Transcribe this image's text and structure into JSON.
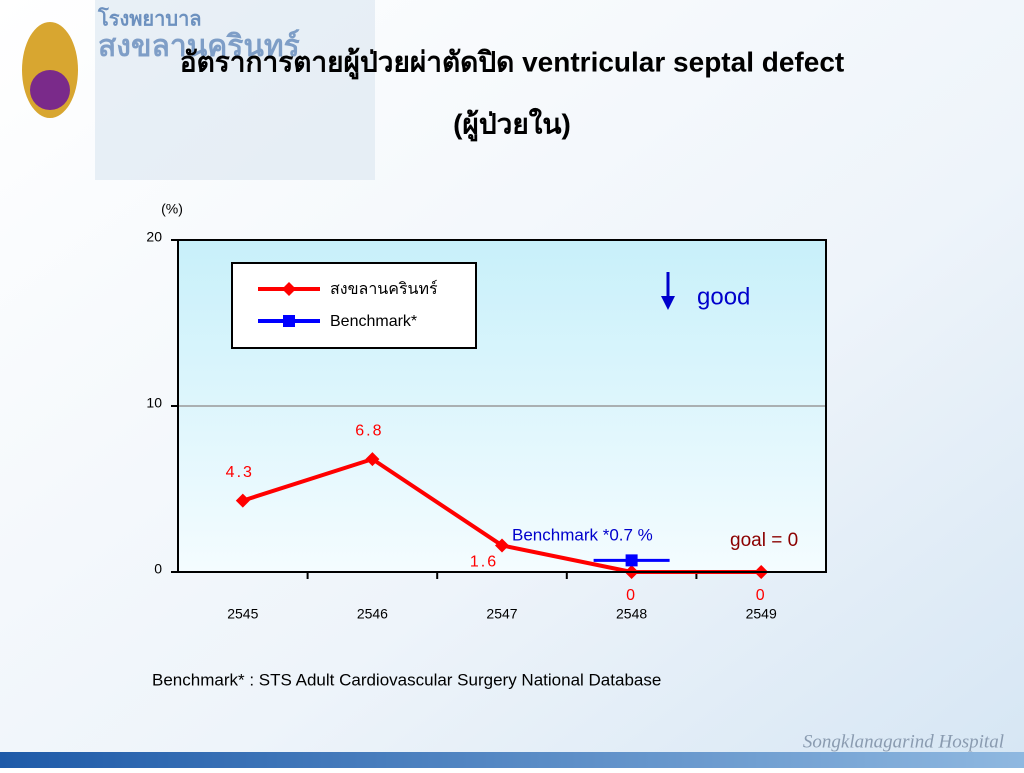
{
  "header": {
    "logo_line1": "โรงพยาบาล",
    "logo_line2": "สงขลานครินทร์"
  },
  "chart_data": {
    "type": "line",
    "title": "อัตราการตายผู้ป่วยผ่าตัดปิด ventricular septal defect",
    "subtitle": "(ผู้ป่วยใน)",
    "y_label": "(%)",
    "categories": [
      "2545",
      "2546",
      "2547",
      "2548",
      "2549"
    ],
    "series": [
      {
        "name": "สงขลานครินทร์",
        "color": "#ff0000",
        "values": [
          4.3,
          6.8,
          1.6,
          0,
          0
        ]
      },
      {
        "name": "Benchmark*",
        "color": "#0000ff",
        "values": [
          null,
          null,
          null,
          0.7,
          null
        ]
      }
    ],
    "ylim": [
      0,
      20
    ],
    "yticks": [
      0,
      10,
      20
    ],
    "grid": true,
    "legend": "upper left",
    "annotations": [
      "good",
      "Benchmark *0.7 %",
      "goal = 0"
    ]
  },
  "footnote": "Benchmark* : STS Adult Cardiovascular Surgery National Database",
  "footer": "Songklanagarind Hospital"
}
